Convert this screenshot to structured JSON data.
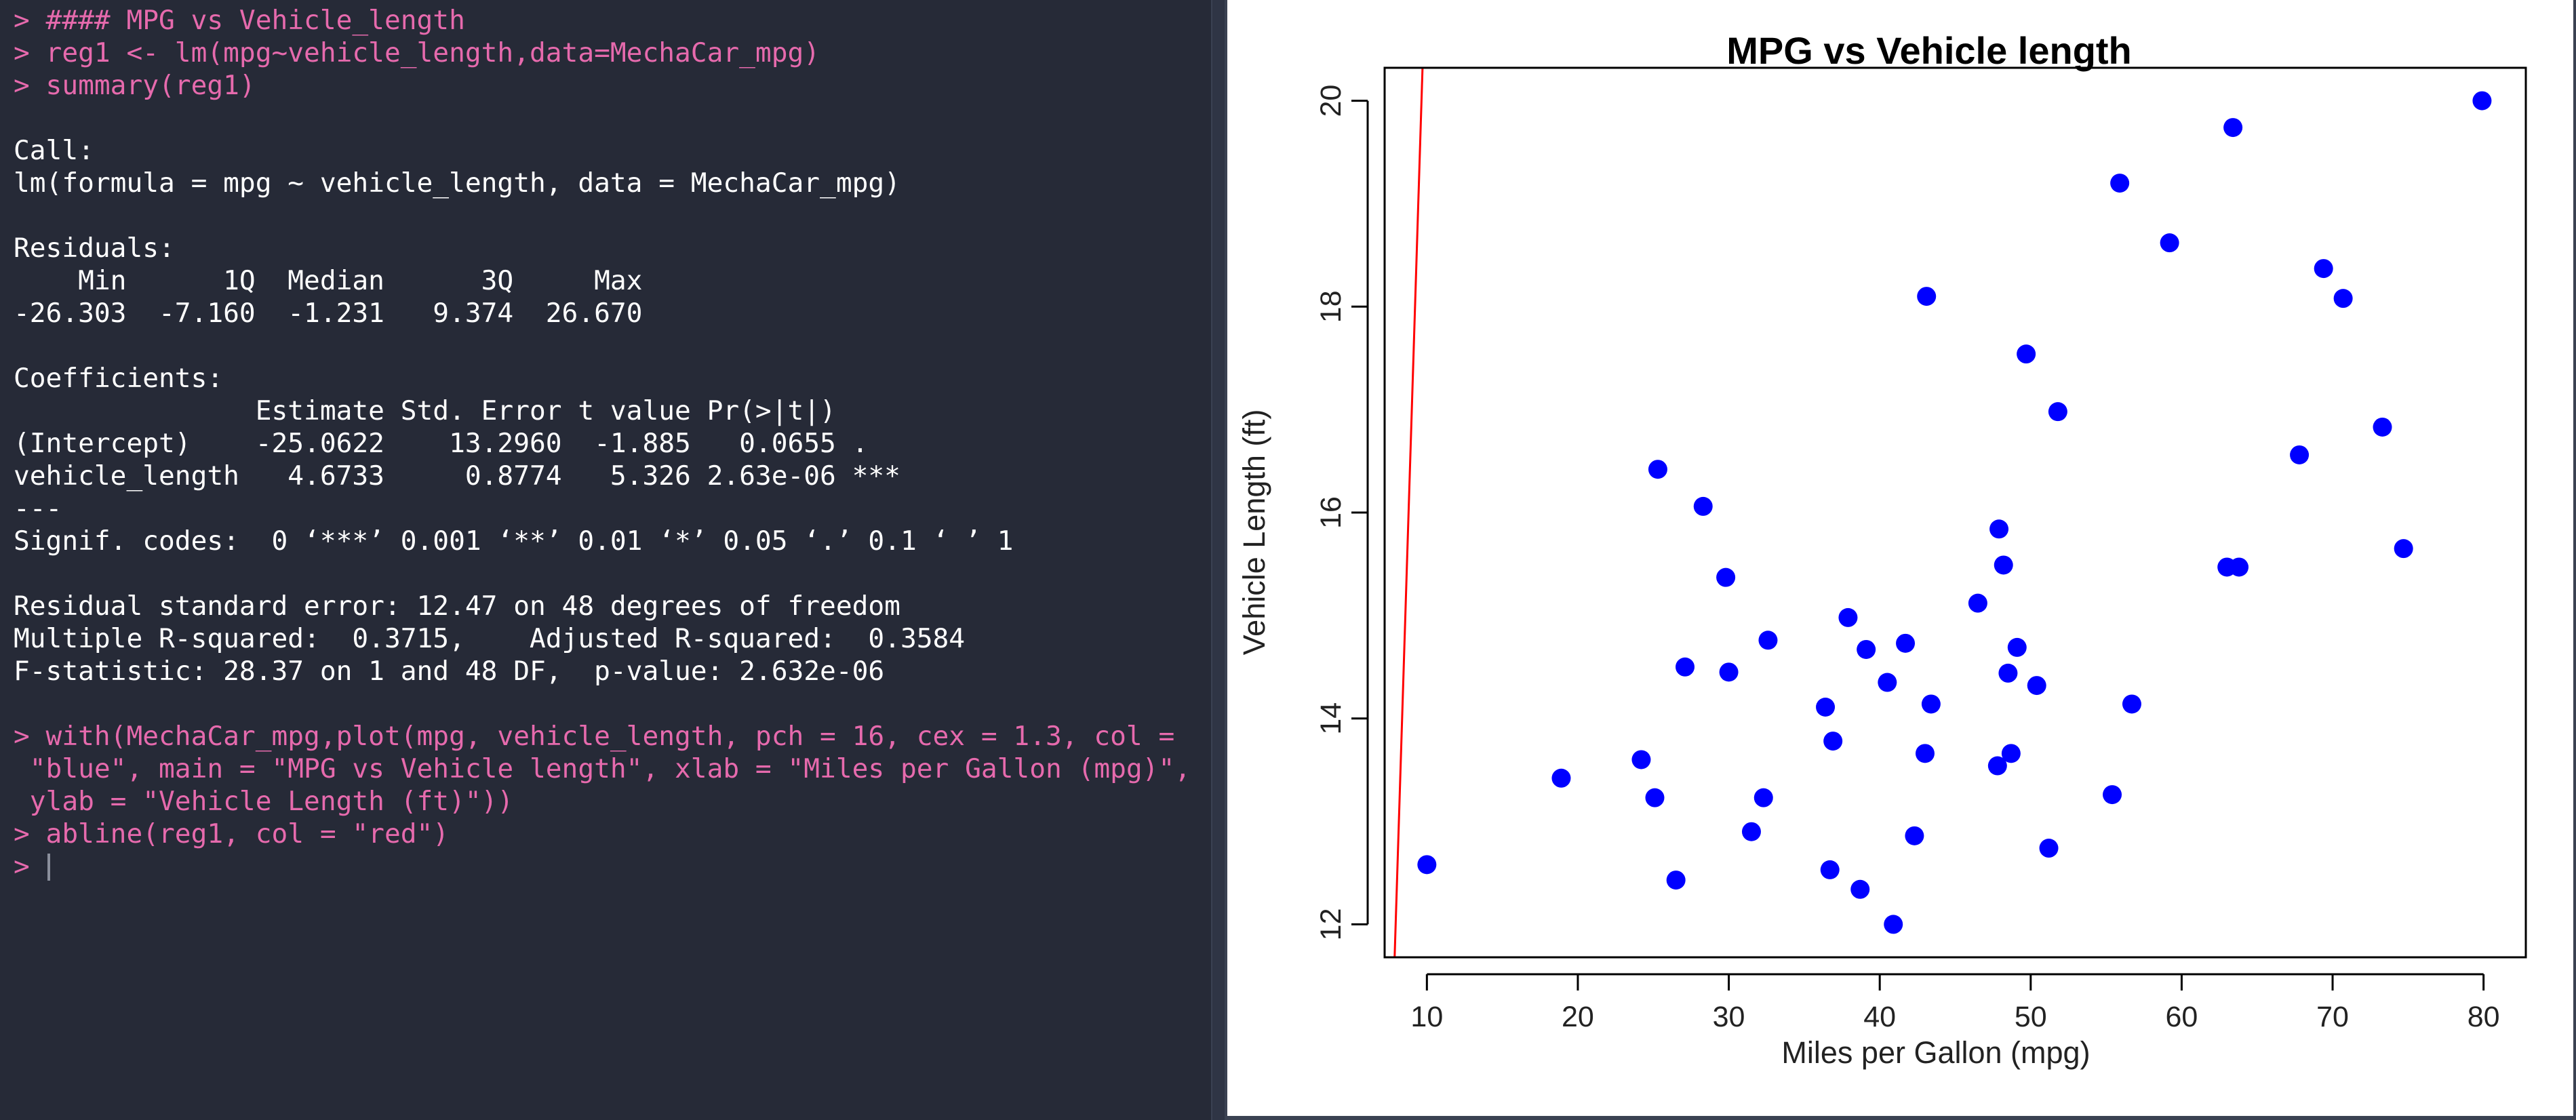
{
  "console": {
    "lines": [
      {
        "kind": "cmd",
        "text": "> #### MPG vs Vehicle_length"
      },
      {
        "kind": "cmd",
        "text": "> reg1 <- lm(mpg~vehicle_length,data=MechaCar_mpg)"
      },
      {
        "kind": "cmd",
        "text": "> summary(reg1)"
      },
      {
        "kind": "out",
        "text": ""
      },
      {
        "kind": "out",
        "text": "Call:"
      },
      {
        "kind": "out",
        "text": "lm(formula = mpg ~ vehicle_length, data = MechaCar_mpg)"
      },
      {
        "kind": "out",
        "text": ""
      },
      {
        "kind": "out",
        "text": "Residuals:"
      },
      {
        "kind": "out",
        "text": "    Min      1Q  Median      3Q     Max "
      },
      {
        "kind": "out",
        "text": "-26.303  -7.160  -1.231   9.374  26.670 "
      },
      {
        "kind": "out",
        "text": ""
      },
      {
        "kind": "out",
        "text": "Coefficients:"
      },
      {
        "kind": "out",
        "text": "               Estimate Std. Error t value Pr(>|t|)    "
      },
      {
        "kind": "out",
        "text": "(Intercept)    -25.0622    13.2960  -1.885   0.0655 .  "
      },
      {
        "kind": "out",
        "text": "vehicle_length   4.6733     0.8774   5.326 2.63e-06 ***"
      },
      {
        "kind": "out",
        "text": "---"
      },
      {
        "kind": "out",
        "text": "Signif. codes:  0 ‘***’ 0.001 ‘**’ 0.01 ‘*’ 0.05 ‘.’ 0.1 ‘ ’ 1"
      },
      {
        "kind": "out",
        "text": ""
      },
      {
        "kind": "out",
        "text": "Residual standard error: 12.47 on 48 degrees of freedom"
      },
      {
        "kind": "out",
        "text": "Multiple R-squared:  0.3715,\tAdjusted R-squared:  0.3584 "
      },
      {
        "kind": "out",
        "text": "F-statistic: 28.37 on 1 and 48 DF,  p-value: 2.632e-06"
      },
      {
        "kind": "out",
        "text": ""
      },
      {
        "kind": "cmd",
        "text": "> with(MechaCar_mpg,plot(mpg, vehicle_length, pch = 16, cex = 1.3, col ="
      },
      {
        "kind": "cmd",
        "text": " \"blue\", main = \"MPG vs Vehicle length\", xlab = \"Miles per Gallon (mpg)\","
      },
      {
        "kind": "cmd",
        "text": " ylab = \"Vehicle Length (ft)\"))"
      },
      {
        "kind": "cmd",
        "text": "> abline(reg1, col = \"red\")"
      },
      {
        "kind": "cmd",
        "text": "> "
      }
    ]
  },
  "chart_data": {
    "type": "scatter",
    "title": "MPG vs Vehicle length",
    "xlabel": "Miles per Gallon (mpg)",
    "ylabel": "Vehicle Length (ft)",
    "xlim": [
      7.2,
      82.8
    ],
    "ylim": [
      11.68,
      20.32
    ],
    "xticks": [
      10,
      20,
      30,
      40,
      50,
      60,
      70,
      80
    ],
    "yticks": [
      12,
      14,
      16,
      18,
      20
    ],
    "grid": false,
    "legend": "none",
    "point_color": "#0000ff",
    "line_color": "#ff0000",
    "regression_line": {
      "intercept": -25.0622,
      "slope": 4.6733
    },
    "points": [
      {
        "x": 10.0,
        "y": 12.58
      },
      {
        "x": 18.9,
        "y": 13.42
      },
      {
        "x": 24.2,
        "y": 13.6
      },
      {
        "x": 25.1,
        "y": 13.23
      },
      {
        "x": 25.3,
        "y": 16.42
      },
      {
        "x": 26.5,
        "y": 12.43
      },
      {
        "x": 27.1,
        "y": 14.5
      },
      {
        "x": 28.3,
        "y": 16.06
      },
      {
        "x": 29.8,
        "y": 15.37
      },
      {
        "x": 30.0,
        "y": 14.45
      },
      {
        "x": 31.5,
        "y": 12.9
      },
      {
        "x": 32.3,
        "y": 13.23
      },
      {
        "x": 32.6,
        "y": 14.76
      },
      {
        "x": 36.4,
        "y": 14.11
      },
      {
        "x": 36.7,
        "y": 12.53
      },
      {
        "x": 36.9,
        "y": 13.78
      },
      {
        "x": 37.9,
        "y": 14.98
      },
      {
        "x": 38.7,
        "y": 12.34
      },
      {
        "x": 39.1,
        "y": 14.67
      },
      {
        "x": 40.5,
        "y": 14.35
      },
      {
        "x": 40.9,
        "y": 12.0
      },
      {
        "x": 41.7,
        "y": 14.73
      },
      {
        "x": 42.3,
        "y": 12.86
      },
      {
        "x": 43.0,
        "y": 13.66
      },
      {
        "x": 43.1,
        "y": 18.1
      },
      {
        "x": 43.4,
        "y": 14.14
      },
      {
        "x": 46.5,
        "y": 15.12
      },
      {
        "x": 47.8,
        "y": 13.54
      },
      {
        "x": 47.9,
        "y": 15.84
      },
      {
        "x": 48.2,
        "y": 15.49
      },
      {
        "x": 48.5,
        "y": 14.44
      },
      {
        "x": 48.7,
        "y": 13.66
      },
      {
        "x": 49.1,
        "y": 14.69
      },
      {
        "x": 49.7,
        "y": 17.54
      },
      {
        "x": 50.4,
        "y": 14.32
      },
      {
        "x": 51.2,
        "y": 12.74
      },
      {
        "x": 51.8,
        "y": 16.98
      },
      {
        "x": 55.4,
        "y": 13.26
      },
      {
        "x": 55.9,
        "y": 19.2
      },
      {
        "x": 56.7,
        "y": 14.14
      },
      {
        "x": 59.2,
        "y": 18.62
      },
      {
        "x": 63.0,
        "y": 15.47
      },
      {
        "x": 63.4,
        "y": 19.74
      },
      {
        "x": 63.8,
        "y": 15.47
      },
      {
        "x": 67.8,
        "y": 16.56
      },
      {
        "x": 69.4,
        "y": 18.37
      },
      {
        "x": 70.7,
        "y": 18.08
      },
      {
        "x": 73.3,
        "y": 16.83
      },
      {
        "x": 74.7,
        "y": 15.65
      },
      {
        "x": 79.9,
        "y": 20.0
      }
    ]
  }
}
